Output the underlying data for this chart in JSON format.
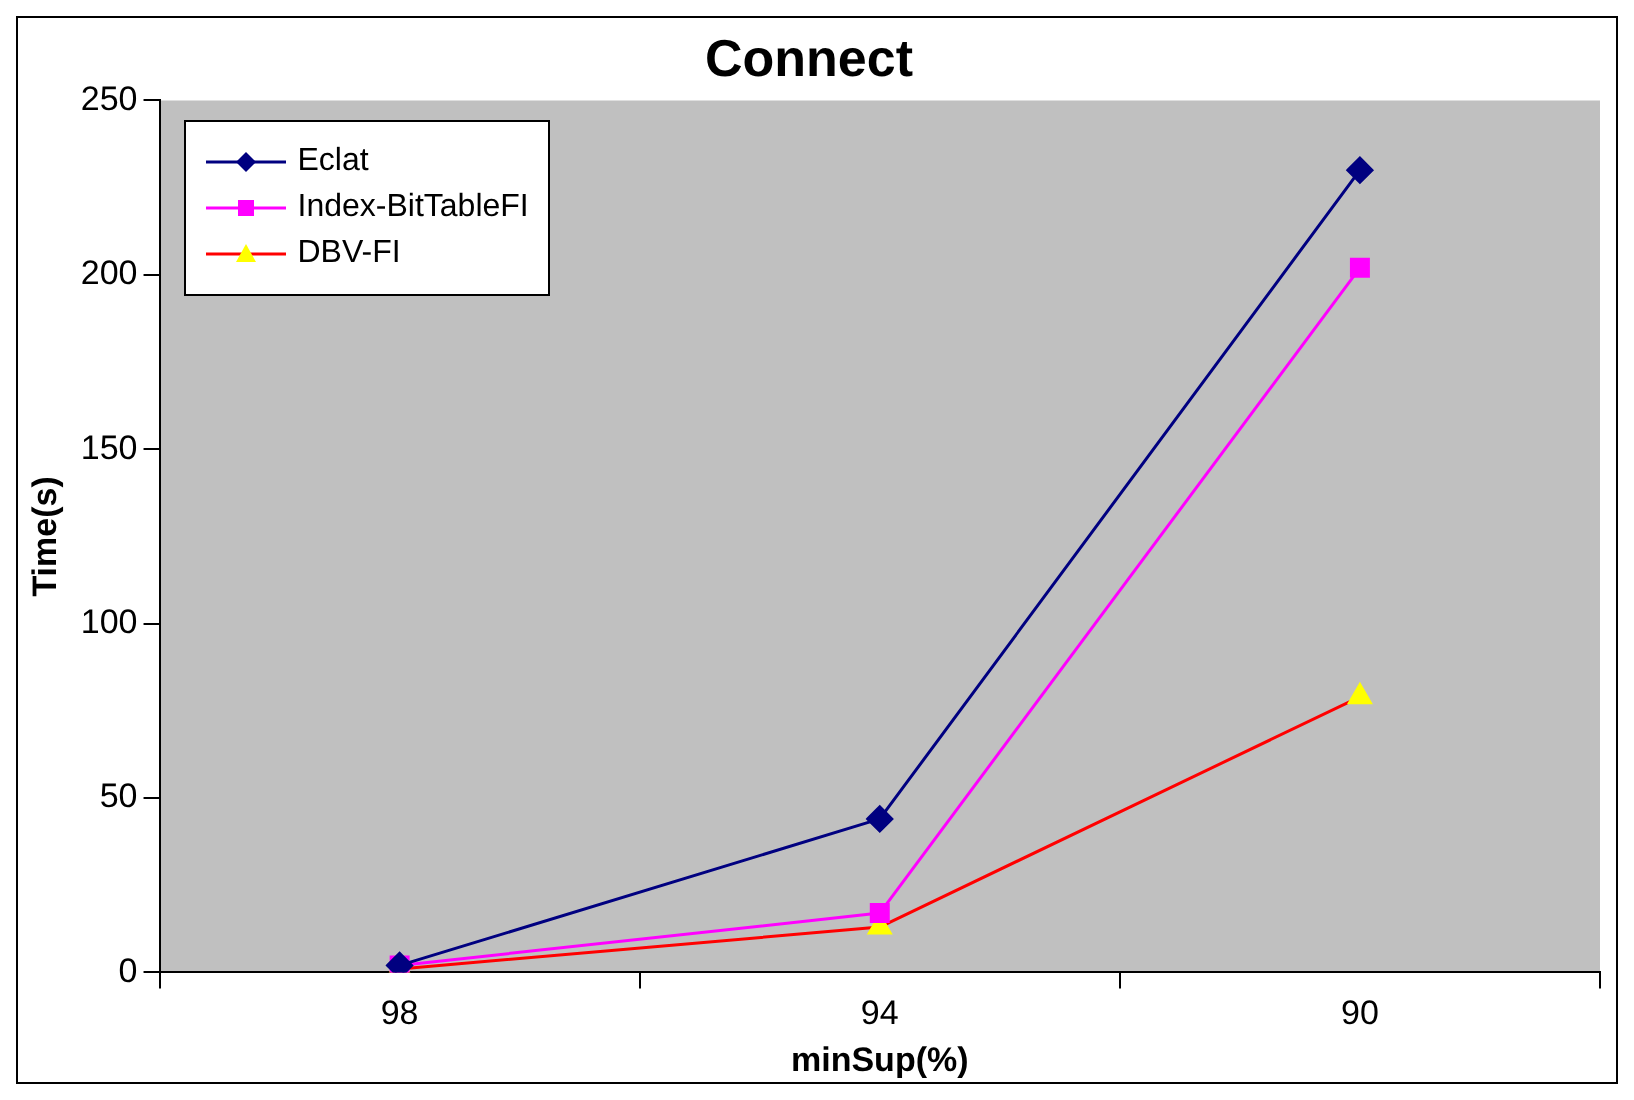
{
  "chart_data": {
    "type": "line",
    "title": "Connect",
    "xlabel": "minSup(%)",
    "ylabel": "Time(s)",
    "categories": [
      "98",
      "94",
      "90"
    ],
    "series": [
      {
        "name": "Eclat",
        "color": "#000080",
        "marker": "diamond",
        "values": [
          2,
          44,
          230
        ]
      },
      {
        "name": "Index-BitTableFI",
        "color": "#ff00ff",
        "marker": "square",
        "values": [
          2,
          17,
          202
        ]
      },
      {
        "name": "DBV-FI",
        "color": "#ff0000",
        "colors": [
          "#ffff00",
          "#ffff00",
          "#ffff00"
        ],
        "marker": "triangle",
        "values": [
          1,
          13,
          79
        ]
      }
    ],
    "ylim": [
      0,
      250
    ],
    "yticks": [
      0,
      50,
      100,
      150,
      200,
      250
    ],
    "grid": false,
    "legend": "top left",
    "line_style": "solid"
  }
}
